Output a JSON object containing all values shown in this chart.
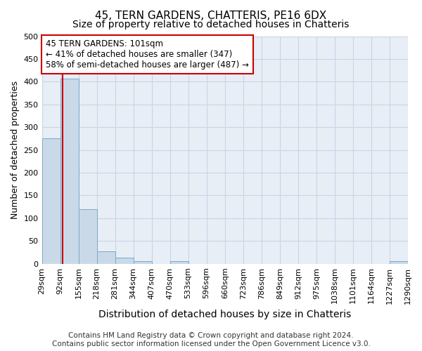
{
  "title": "45, TERN GARDENS, CHATTERIS, PE16 6DX",
  "subtitle": "Size of property relative to detached houses in Chatteris",
  "xlabel": "Distribution of detached houses by size in Chatteris",
  "ylabel": "Number of detached properties",
  "footer_line1": "Contains HM Land Registry data © Crown copyright and database right 2024.",
  "footer_line2": "Contains public sector information licensed under the Open Government Licence v3.0.",
  "bin_edges": [
    29,
    92,
    155,
    218,
    281,
    344,
    407,
    470,
    533,
    596,
    660,
    723,
    786,
    849,
    912,
    975,
    1038,
    1101,
    1164,
    1227,
    1290
  ],
  "bin_labels": [
    "29sqm",
    "92sqm",
    "155sqm",
    "218sqm",
    "281sqm",
    "344sqm",
    "407sqm",
    "470sqm",
    "533sqm",
    "596sqm",
    "660sqm",
    "723sqm",
    "786sqm",
    "849sqm",
    "912sqm",
    "975sqm",
    "1038sqm",
    "1101sqm",
    "1164sqm",
    "1227sqm",
    "1290sqm"
  ],
  "bar_heights": [
    275,
    407,
    120,
    28,
    14,
    5,
    0,
    5,
    0,
    0,
    0,
    0,
    0,
    0,
    0,
    0,
    0,
    0,
    0,
    5
  ],
  "bar_color": "#c9d9e8",
  "bar_edge_color": "#7aaac8",
  "property_sqm": 101,
  "ref_line_color": "#cc0000",
  "annotation_line1": "45 TERN GARDENS: 101sqm",
  "annotation_line2": "← 41% of detached houses are smaller (347)",
  "annotation_line3": "58% of semi-detached houses are larger (487) →",
  "annotation_box_color": "#ffffff",
  "annotation_box_edge_color": "#cc0000",
  "ylim": [
    0,
    500
  ],
  "yticks": [
    0,
    50,
    100,
    150,
    200,
    250,
    300,
    350,
    400,
    450,
    500
  ],
  "grid_color": "#c8d4e4",
  "plot_bg_color": "#e8eef6",
  "title_fontsize": 11,
  "subtitle_fontsize": 10,
  "annotation_fontsize": 8.5,
  "ylabel_fontsize": 9,
  "xlabel_fontsize": 10,
  "footer_fontsize": 7.5,
  "tick_fontsize": 8
}
